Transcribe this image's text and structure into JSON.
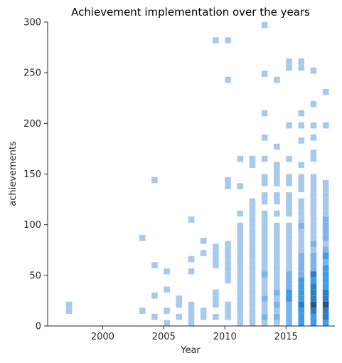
{
  "chart_data": {
    "type": "heatmap",
    "title": "Achievement implementation over the years",
    "xlabel": "Year",
    "ylabel": "achievements",
    "xlim": [
      1995.5,
      2019.0
    ],
    "ylim": [
      0,
      300
    ],
    "xticks": [
      2000,
      2005,
      2010,
      2015
    ],
    "yticks": [
      0,
      50,
      100,
      150,
      200,
      250,
      300
    ],
    "grid": false,
    "base_color": "#1f77b4",
    "bin_width_years": 0.5,
    "bin_height": 6,
    "cells": [
      {
        "x": 1997.0,
        "y": 15,
        "d": 1
      },
      {
        "x": 1997.0,
        "y": 21,
        "d": 1
      },
      {
        "x": 2003.0,
        "y": 15,
        "d": 1
      },
      {
        "x": 2003.0,
        "y": 87,
        "d": 1
      },
      {
        "x": 2004.0,
        "y": 9,
        "d": 1
      },
      {
        "x": 2004.0,
        "y": 30,
        "d": 1
      },
      {
        "x": 2004.0,
        "y": 60,
        "d": 1
      },
      {
        "x": 2004.0,
        "y": 144,
        "d": 1
      },
      {
        "x": 2005.0,
        "y": 3,
        "d": 1
      },
      {
        "x": 2005.0,
        "y": 15,
        "d": 1
      },
      {
        "x": 2005.0,
        "y": 36,
        "d": 1
      },
      {
        "x": 2005.0,
        "y": 54,
        "d": 1
      },
      {
        "x": 2006.0,
        "y": 9,
        "d": 1
      },
      {
        "x": 2006.0,
        "y": 21,
        "d": 1
      },
      {
        "x": 2006.0,
        "y": 27,
        "d": 1
      },
      {
        "x": 2007.0,
        "y": 3,
        "d": 1
      },
      {
        "x": 2007.0,
        "y": 9,
        "d": 1
      },
      {
        "x": 2007.0,
        "y": 15,
        "d": 1
      },
      {
        "x": 2007.0,
        "y": 21,
        "d": 1
      },
      {
        "x": 2007.0,
        "y": 54,
        "d": 1
      },
      {
        "x": 2007.0,
        "y": 66,
        "d": 1
      },
      {
        "x": 2007.0,
        "y": 105,
        "d": 1
      },
      {
        "x": 2008.0,
        "y": 9,
        "d": 1
      },
      {
        "x": 2008.0,
        "y": 15,
        "d": 1
      },
      {
        "x": 2008.0,
        "y": 72,
        "d": 1
      },
      {
        "x": 2008.0,
        "y": 84,
        "d": 1
      },
      {
        "x": 2009.0,
        "y": 9,
        "d": 1
      },
      {
        "x": 2009.0,
        "y": 21,
        "d": 1
      },
      {
        "x": 2009.0,
        "y": 27,
        "d": 1
      },
      {
        "x": 2009.0,
        "y": 33,
        "d": 1
      },
      {
        "x": 2009.0,
        "y": 60,
        "d": 1
      },
      {
        "x": 2009.0,
        "y": 66,
        "d": 1
      },
      {
        "x": 2009.0,
        "y": 72,
        "d": 1
      },
      {
        "x": 2009.0,
        "y": 78,
        "d": 1
      },
      {
        "x": 2009.0,
        "y": 282,
        "d": 1
      },
      {
        "x": 2010.0,
        "y": 9,
        "d": 1
      },
      {
        "x": 2010.0,
        "y": 15,
        "d": 1
      },
      {
        "x": 2010.0,
        "y": 21,
        "d": 1
      },
      {
        "x": 2010.0,
        "y": 45,
        "d": 1
      },
      {
        "x": 2010.0,
        "y": 51,
        "d": 1
      },
      {
        "x": 2010.0,
        "y": 57,
        "d": 1
      },
      {
        "x": 2010.0,
        "y": 63,
        "d": 1
      },
      {
        "x": 2010.0,
        "y": 69,
        "d": 1
      },
      {
        "x": 2010.0,
        "y": 75,
        "d": 1
      },
      {
        "x": 2010.0,
        "y": 81,
        "d": 1
      },
      {
        "x": 2010.0,
        "y": 138,
        "d": 1
      },
      {
        "x": 2010.0,
        "y": 144,
        "d": 1
      },
      {
        "x": 2010.0,
        "y": 243,
        "d": 1
      },
      {
        "x": 2010.0,
        "y": 282,
        "d": 1
      },
      {
        "x": 2011.0,
        "y": 3,
        "d": 1
      },
      {
        "x": 2011.0,
        "y": 9,
        "d": 1
      },
      {
        "x": 2011.0,
        "y": 15,
        "d": 1
      },
      {
        "x": 2011.0,
        "y": 21,
        "d": 1
      },
      {
        "x": 2011.0,
        "y": 27,
        "d": 1
      },
      {
        "x": 2011.0,
        "y": 33,
        "d": 1
      },
      {
        "x": 2011.0,
        "y": 39,
        "d": 1
      },
      {
        "x": 2011.0,
        "y": 45,
        "d": 1
      },
      {
        "x": 2011.0,
        "y": 51,
        "d": 1
      },
      {
        "x": 2011.0,
        "y": 57,
        "d": 1
      },
      {
        "x": 2011.0,
        "y": 63,
        "d": 1
      },
      {
        "x": 2011.0,
        "y": 69,
        "d": 1
      },
      {
        "x": 2011.0,
        "y": 75,
        "d": 1
      },
      {
        "x": 2011.0,
        "y": 81,
        "d": 1
      },
      {
        "x": 2011.0,
        "y": 87,
        "d": 1
      },
      {
        "x": 2011.0,
        "y": 93,
        "d": 1
      },
      {
        "x": 2011.0,
        "y": 99,
        "d": 1
      },
      {
        "x": 2011.0,
        "y": 111,
        "d": 1
      },
      {
        "x": 2011.0,
        "y": 138,
        "d": 1
      },
      {
        "x": 2011.0,
        "y": 165,
        "d": 1
      },
      {
        "x": 2012.0,
        "y": 3,
        "d": 1
      },
      {
        "x": 2012.0,
        "y": 9,
        "d": 1
      },
      {
        "x": 2012.0,
        "y": 15,
        "d": 1
      },
      {
        "x": 2012.0,
        "y": 21,
        "d": 1
      },
      {
        "x": 2012.0,
        "y": 27,
        "d": 1
      },
      {
        "x": 2012.0,
        "y": 33,
        "d": 1
      },
      {
        "x": 2012.0,
        "y": 39,
        "d": 1
      },
      {
        "x": 2012.0,
        "y": 45,
        "d": 1
      },
      {
        "x": 2012.0,
        "y": 51,
        "d": 1
      },
      {
        "x": 2012.0,
        "y": 57,
        "d": 1
      },
      {
        "x": 2012.0,
        "y": 63,
        "d": 1
      },
      {
        "x": 2012.0,
        "y": 69,
        "d": 1
      },
      {
        "x": 2012.0,
        "y": 75,
        "d": 1
      },
      {
        "x": 2012.0,
        "y": 81,
        "d": 1
      },
      {
        "x": 2012.0,
        "y": 87,
        "d": 1
      },
      {
        "x": 2012.0,
        "y": 93,
        "d": 1
      },
      {
        "x": 2012.0,
        "y": 99,
        "d": 1
      },
      {
        "x": 2012.0,
        "y": 105,
        "d": 1
      },
      {
        "x": 2012.0,
        "y": 111,
        "d": 1
      },
      {
        "x": 2012.0,
        "y": 117,
        "d": 1
      },
      {
        "x": 2012.0,
        "y": 123,
        "d": 1
      },
      {
        "x": 2012.0,
        "y": 159,
        "d": 1
      },
      {
        "x": 2012.0,
        "y": 165,
        "d": 1
      },
      {
        "x": 2013.0,
        "y": 3,
        "d": 1
      },
      {
        "x": 2013.0,
        "y": 9,
        "d": 2
      },
      {
        "x": 2013.0,
        "y": 15,
        "d": 1
      },
      {
        "x": 2013.0,
        "y": 21,
        "d": 1
      },
      {
        "x": 2013.0,
        "y": 27,
        "d": 2
      },
      {
        "x": 2013.0,
        "y": 33,
        "d": 1
      },
      {
        "x": 2013.0,
        "y": 39,
        "d": 1
      },
      {
        "x": 2013.0,
        "y": 45,
        "d": 1
      },
      {
        "x": 2013.0,
        "y": 51,
        "d": 2
      },
      {
        "x": 2013.0,
        "y": 57,
        "d": 1
      },
      {
        "x": 2013.0,
        "y": 63,
        "d": 1
      },
      {
        "x": 2013.0,
        "y": 69,
        "d": 1
      },
      {
        "x": 2013.0,
        "y": 75,
        "d": 1
      },
      {
        "x": 2013.0,
        "y": 81,
        "d": 1
      },
      {
        "x": 2013.0,
        "y": 87,
        "d": 1
      },
      {
        "x": 2013.0,
        "y": 93,
        "d": 1
      },
      {
        "x": 2013.0,
        "y": 99,
        "d": 1
      },
      {
        "x": 2013.0,
        "y": 105,
        "d": 1
      },
      {
        "x": 2013.0,
        "y": 111,
        "d": 1
      },
      {
        "x": 2013.0,
        "y": 123,
        "d": 1
      },
      {
        "x": 2013.0,
        "y": 129,
        "d": 1
      },
      {
        "x": 2013.0,
        "y": 141,
        "d": 1
      },
      {
        "x": 2013.0,
        "y": 147,
        "d": 1
      },
      {
        "x": 2013.0,
        "y": 165,
        "d": 1
      },
      {
        "x": 2013.0,
        "y": 186,
        "d": 1
      },
      {
        "x": 2013.0,
        "y": 210,
        "d": 1
      },
      {
        "x": 2013.0,
        "y": 249,
        "d": 1
      },
      {
        "x": 2013.0,
        "y": 297,
        "d": 1
      },
      {
        "x": 2014.0,
        "y": 3,
        "d": 1
      },
      {
        "x": 2014.0,
        "y": 9,
        "d": 2
      },
      {
        "x": 2014.0,
        "y": 15,
        "d": 1
      },
      {
        "x": 2014.0,
        "y": 21,
        "d": 2
      },
      {
        "x": 2014.0,
        "y": 27,
        "d": 1
      },
      {
        "x": 2014.0,
        "y": 33,
        "d": 2
      },
      {
        "x": 2014.0,
        "y": 39,
        "d": 1
      },
      {
        "x": 2014.0,
        "y": 45,
        "d": 1
      },
      {
        "x": 2014.0,
        "y": 51,
        "d": 1
      },
      {
        "x": 2014.0,
        "y": 57,
        "d": 1
      },
      {
        "x": 2014.0,
        "y": 63,
        "d": 1
      },
      {
        "x": 2014.0,
        "y": 69,
        "d": 1
      },
      {
        "x": 2014.0,
        "y": 75,
        "d": 1
      },
      {
        "x": 2014.0,
        "y": 81,
        "d": 1
      },
      {
        "x": 2014.0,
        "y": 87,
        "d": 1
      },
      {
        "x": 2014.0,
        "y": 93,
        "d": 1
      },
      {
        "x": 2014.0,
        "y": 99,
        "d": 1
      },
      {
        "x": 2014.0,
        "y": 111,
        "d": 1
      },
      {
        "x": 2014.0,
        "y": 123,
        "d": 1
      },
      {
        "x": 2014.0,
        "y": 129,
        "d": 1
      },
      {
        "x": 2014.0,
        "y": 141,
        "d": 1
      },
      {
        "x": 2014.0,
        "y": 147,
        "d": 1
      },
      {
        "x": 2014.0,
        "y": 153,
        "d": 1
      },
      {
        "x": 2014.0,
        "y": 159,
        "d": 1
      },
      {
        "x": 2014.0,
        "y": 177,
        "d": 1
      },
      {
        "x": 2014.0,
        "y": 243,
        "d": 1
      },
      {
        "x": 2015.0,
        "y": 3,
        "d": 2
      },
      {
        "x": 2015.0,
        "y": 9,
        "d": 2
      },
      {
        "x": 2015.0,
        "y": 15,
        "d": 2
      },
      {
        "x": 2015.0,
        "y": 21,
        "d": 2
      },
      {
        "x": 2015.0,
        "y": 27,
        "d": 3
      },
      {
        "x": 2015.0,
        "y": 33,
        "d": 3
      },
      {
        "x": 2015.0,
        "y": 39,
        "d": 2
      },
      {
        "x": 2015.0,
        "y": 45,
        "d": 2
      },
      {
        "x": 2015.0,
        "y": 51,
        "d": 2
      },
      {
        "x": 2015.0,
        "y": 57,
        "d": 1
      },
      {
        "x": 2015.0,
        "y": 63,
        "d": 1
      },
      {
        "x": 2015.0,
        "y": 69,
        "d": 1
      },
      {
        "x": 2015.0,
        "y": 75,
        "d": 1
      },
      {
        "x": 2015.0,
        "y": 81,
        "d": 1
      },
      {
        "x": 2015.0,
        "y": 87,
        "d": 1
      },
      {
        "x": 2015.0,
        "y": 93,
        "d": 1
      },
      {
        "x": 2015.0,
        "y": 99,
        "d": 1
      },
      {
        "x": 2015.0,
        "y": 111,
        "d": 1
      },
      {
        "x": 2015.0,
        "y": 117,
        "d": 1
      },
      {
        "x": 2015.0,
        "y": 123,
        "d": 1
      },
      {
        "x": 2015.0,
        "y": 129,
        "d": 1
      },
      {
        "x": 2015.0,
        "y": 141,
        "d": 1
      },
      {
        "x": 2015.0,
        "y": 147,
        "d": 1
      },
      {
        "x": 2015.0,
        "y": 165,
        "d": 1
      },
      {
        "x": 2015.0,
        "y": 198,
        "d": 1
      },
      {
        "x": 2015.0,
        "y": 255,
        "d": 1
      },
      {
        "x": 2015.0,
        "y": 261,
        "d": 1
      },
      {
        "x": 2016.0,
        "y": 3,
        "d": 3
      },
      {
        "x": 2016.0,
        "y": 9,
        "d": 3
      },
      {
        "x": 2016.0,
        "y": 15,
        "d": 3
      },
      {
        "x": 2016.0,
        "y": 21,
        "d": 4
      },
      {
        "x": 2016.0,
        "y": 27,
        "d": 3
      },
      {
        "x": 2016.0,
        "y": 33,
        "d": 3
      },
      {
        "x": 2016.0,
        "y": 39,
        "d": 3
      },
      {
        "x": 2016.0,
        "y": 45,
        "d": 3
      },
      {
        "x": 2016.0,
        "y": 51,
        "d": 2
      },
      {
        "x": 2016.0,
        "y": 57,
        "d": 2
      },
      {
        "x": 2016.0,
        "y": 63,
        "d": 2
      },
      {
        "x": 2016.0,
        "y": 69,
        "d": 2
      },
      {
        "x": 2016.0,
        "y": 75,
        "d": 1
      },
      {
        "x": 2016.0,
        "y": 81,
        "d": 1
      },
      {
        "x": 2016.0,
        "y": 87,
        "d": 1
      },
      {
        "x": 2016.0,
        "y": 93,
        "d": 1
      },
      {
        "x": 2016.0,
        "y": 99,
        "d": 2
      },
      {
        "x": 2016.0,
        "y": 105,
        "d": 1
      },
      {
        "x": 2016.0,
        "y": 111,
        "d": 1
      },
      {
        "x": 2016.0,
        "y": 117,
        "d": 1
      },
      {
        "x": 2016.0,
        "y": 123,
        "d": 1
      },
      {
        "x": 2016.0,
        "y": 135,
        "d": 1
      },
      {
        "x": 2016.0,
        "y": 141,
        "d": 1
      },
      {
        "x": 2016.0,
        "y": 147,
        "d": 1
      },
      {
        "x": 2016.0,
        "y": 159,
        "d": 1
      },
      {
        "x": 2016.0,
        "y": 183,
        "d": 1
      },
      {
        "x": 2016.0,
        "y": 198,
        "d": 1
      },
      {
        "x": 2016.0,
        "y": 210,
        "d": 1
      },
      {
        "x": 2016.0,
        "y": 255,
        "d": 1
      },
      {
        "x": 2016.0,
        "y": 261,
        "d": 1
      },
      {
        "x": 2017.0,
        "y": 3,
        "d": 3
      },
      {
        "x": 2017.0,
        "y": 9,
        "d": 3
      },
      {
        "x": 2017.0,
        "y": 15,
        "d": 4
      },
      {
        "x": 2017.0,
        "y": 21,
        "d": 5
      },
      {
        "x": 2017.0,
        "y": 27,
        "d": 4
      },
      {
        "x": 2017.0,
        "y": 33,
        "d": 4
      },
      {
        "x": 2017.0,
        "y": 39,
        "d": 4
      },
      {
        "x": 2017.0,
        "y": 45,
        "d": 3
      },
      {
        "x": 2017.0,
        "y": 51,
        "d": 4
      },
      {
        "x": 2017.0,
        "y": 57,
        "d": 2
      },
      {
        "x": 2017.0,
        "y": 63,
        "d": 2
      },
      {
        "x": 2017.0,
        "y": 69,
        "d": 2
      },
      {
        "x": 2017.0,
        "y": 75,
        "d": 1
      },
      {
        "x": 2017.0,
        "y": 81,
        "d": 2
      },
      {
        "x": 2017.0,
        "y": 87,
        "d": 1
      },
      {
        "x": 2017.0,
        "y": 93,
        "d": 1
      },
      {
        "x": 2017.0,
        "y": 99,
        "d": 1
      },
      {
        "x": 2017.0,
        "y": 105,
        "d": 1
      },
      {
        "x": 2017.0,
        "y": 111,
        "d": 1
      },
      {
        "x": 2017.0,
        "y": 117,
        "d": 1
      },
      {
        "x": 2017.0,
        "y": 123,
        "d": 1
      },
      {
        "x": 2017.0,
        "y": 129,
        "d": 1
      },
      {
        "x": 2017.0,
        "y": 135,
        "d": 1
      },
      {
        "x": 2017.0,
        "y": 141,
        "d": 1
      },
      {
        "x": 2017.0,
        "y": 147,
        "d": 1
      },
      {
        "x": 2017.0,
        "y": 165,
        "d": 1
      },
      {
        "x": 2017.0,
        "y": 171,
        "d": 1
      },
      {
        "x": 2017.0,
        "y": 186,
        "d": 1
      },
      {
        "x": 2017.0,
        "y": 198,
        "d": 1
      },
      {
        "x": 2017.0,
        "y": 219,
        "d": 1
      },
      {
        "x": 2017.0,
        "y": 252,
        "d": 1
      },
      {
        "x": 2018.0,
        "y": 3,
        "d": 3
      },
      {
        "x": 2018.0,
        "y": 9,
        "d": 4
      },
      {
        "x": 2018.0,
        "y": 15,
        "d": 4
      },
      {
        "x": 2018.0,
        "y": 21,
        "d": 5
      },
      {
        "x": 2018.0,
        "y": 27,
        "d": 4
      },
      {
        "x": 2018.0,
        "y": 33,
        "d": 4
      },
      {
        "x": 2018.0,
        "y": 39,
        "d": 3
      },
      {
        "x": 2018.0,
        "y": 45,
        "d": 3
      },
      {
        "x": 2018.0,
        "y": 51,
        "d": 3
      },
      {
        "x": 2018.0,
        "y": 57,
        "d": 3
      },
      {
        "x": 2018.0,
        "y": 63,
        "d": 2
      },
      {
        "x": 2018.0,
        "y": 69,
        "d": 3
      },
      {
        "x": 2018.0,
        "y": 75,
        "d": 2
      },
      {
        "x": 2018.0,
        "y": 81,
        "d": 1
      },
      {
        "x": 2018.0,
        "y": 87,
        "d": 2
      },
      {
        "x": 2018.0,
        "y": 93,
        "d": 2
      },
      {
        "x": 2018.0,
        "y": 99,
        "d": 2
      },
      {
        "x": 2018.0,
        "y": 105,
        "d": 2
      },
      {
        "x": 2018.0,
        "y": 111,
        "d": 1
      },
      {
        "x": 2018.0,
        "y": 117,
        "d": 1
      },
      {
        "x": 2018.0,
        "y": 123,
        "d": 1
      },
      {
        "x": 2018.0,
        "y": 129,
        "d": 1
      },
      {
        "x": 2018.0,
        "y": 135,
        "d": 1
      },
      {
        "x": 2018.0,
        "y": 141,
        "d": 1
      },
      {
        "x": 2018.0,
        "y": 198,
        "d": 1
      },
      {
        "x": 2018.0,
        "y": 231,
        "d": 1
      }
    ]
  }
}
